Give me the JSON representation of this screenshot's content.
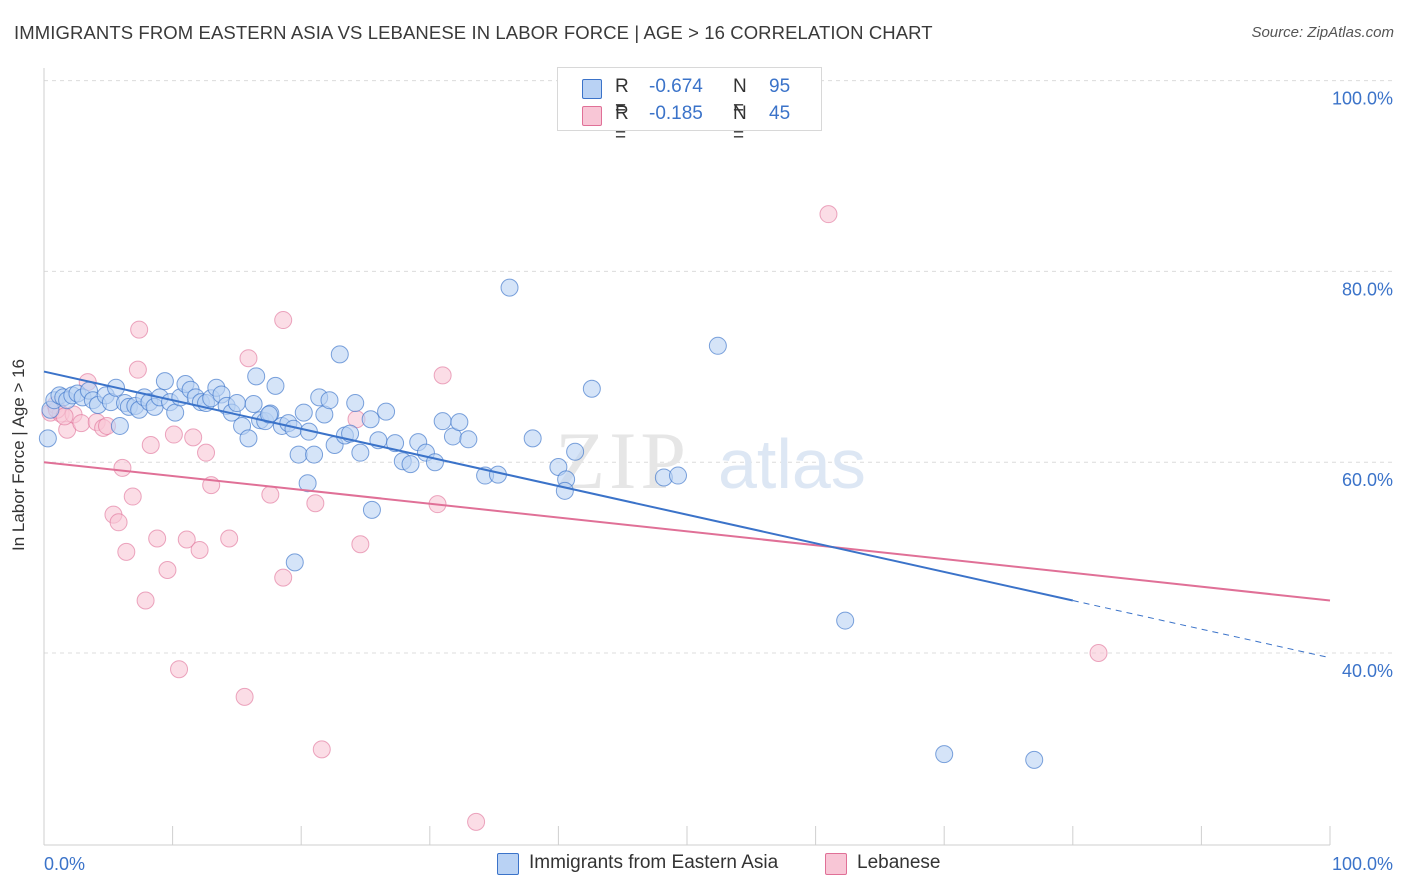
{
  "title": "IMMIGRANTS FROM EASTERN ASIA VS LEBANESE IN LABOR FORCE | AGE > 16 CORRELATION CHART",
  "source": "Source: ZipAtlas.com",
  "watermark": {
    "zip": "ZIP",
    "atlas": "atlas"
  },
  "colors": {
    "blue": "#3b73c9",
    "blue_fill": "#b9d2f4",
    "pink": "#e07097",
    "pink_fill": "#f8c6d6",
    "grid": "#dcdcdc",
    "axis_text": "#3b73c9"
  },
  "legend": {
    "rows": [
      {
        "r_label": "R =",
        "r_value": "-0.674",
        "n_label": "N =",
        "n_value": "95"
      },
      {
        "r_label": "R =",
        "r_value": "-0.185",
        "n_label": "N =",
        "n_value": "45"
      }
    ]
  },
  "bottom_legend": {
    "series1": "Immigrants from Eastern Asia",
    "series2": "Lebanese"
  },
  "chart_data": {
    "type": "scatter",
    "title": "IMMIGRANTS FROM EASTERN ASIA VS LEBANESE IN LABOR FORCE | AGE > 16 CORRELATION CHART",
    "xlabel": "",
    "ylabel": "In Labor Force | Age > 16",
    "xlim": [
      0,
      100
    ],
    "ylim": [
      20,
      102
    ],
    "x_tick_labels": [
      "0.0%",
      "100.0%"
    ],
    "y_ticks": [
      40,
      60,
      80,
      100
    ],
    "y_tick_labels": [
      "40.0%",
      "60.0%",
      "80.0%",
      "100.0%"
    ],
    "grid": true,
    "series": [
      {
        "name": "Immigrants from Eastern Asia",
        "color": "#3b73c9",
        "r": -0.674,
        "n": 95,
        "trend": {
          "x0": 0,
          "y0": 69.5,
          "x1": 80,
          "y1": 45.5,
          "dashed_to_x": 100,
          "dashed_to_y": 39.5
        },
        "points": [
          [
            0.3,
            62.5
          ],
          [
            0.5,
            65.5
          ],
          [
            0.8,
            66.5
          ],
          [
            1.2,
            67
          ],
          [
            1.5,
            66.8
          ],
          [
            1.8,
            66.5
          ],
          [
            2.2,
            67
          ],
          [
            2.6,
            67.2
          ],
          [
            3.0,
            66.8
          ],
          [
            3.5,
            67.5
          ],
          [
            3.8,
            66.5
          ],
          [
            4.2,
            66
          ],
          [
            4.8,
            67
          ],
          [
            5.2,
            66.3
          ],
          [
            5.6,
            67.8
          ],
          [
            5.9,
            63.8
          ],
          [
            6.3,
            66.2
          ],
          [
            6.6,
            65.8
          ],
          [
            7.1,
            65.9
          ],
          [
            7.4,
            65.5
          ],
          [
            7.8,
            66.8
          ],
          [
            8.2,
            66.3
          ],
          [
            8.6,
            65.8
          ],
          [
            9.0,
            66.8
          ],
          [
            9.4,
            68.5
          ],
          [
            9.8,
            66.3
          ],
          [
            10.2,
            65.2
          ],
          [
            10.6,
            66.8
          ],
          [
            11.0,
            68.2
          ],
          [
            11.4,
            67.6
          ],
          [
            11.8,
            66.8
          ],
          [
            12.2,
            66.3
          ],
          [
            12.6,
            66.2
          ],
          [
            13.0,
            66.7
          ],
          [
            13.4,
            67.8
          ],
          [
            13.8,
            67.1
          ],
          [
            14.2,
            65.9
          ],
          [
            14.6,
            65.2
          ],
          [
            15.0,
            66.2
          ],
          [
            15.4,
            63.8
          ],
          [
            15.9,
            62.5
          ],
          [
            16.3,
            66.1
          ],
          [
            16.8,
            64.4
          ],
          [
            17.2,
            64.3
          ],
          [
            17.6,
            65.1
          ],
          [
            18.0,
            68.0
          ],
          [
            18.5,
            63.8
          ],
          [
            19.0,
            64.1
          ],
          [
            19.4,
            63.5
          ],
          [
            19.8,
            60.8
          ],
          [
            20.2,
            65.2
          ],
          [
            20.6,
            63.2
          ],
          [
            21.0,
            60.8
          ],
          [
            21.4,
            66.8
          ],
          [
            21.8,
            65.0
          ],
          [
            22.2,
            66.5
          ],
          [
            22.6,
            61.8
          ],
          [
            23.0,
            71.3
          ],
          [
            23.4,
            62.8
          ],
          [
            23.8,
            63.0
          ],
          [
            24.2,
            66.2
          ],
          [
            24.6,
            61.0
          ],
          [
            25.4,
            64.5
          ],
          [
            26.0,
            62.3
          ],
          [
            26.6,
            65.3
          ],
          [
            27.3,
            62.0
          ],
          [
            27.9,
            60.1
          ],
          [
            28.5,
            59.8
          ],
          [
            29.1,
            62.1
          ],
          [
            29.7,
            61.0
          ],
          [
            30.4,
            60.0
          ],
          [
            31.0,
            64.3
          ],
          [
            31.8,
            62.7
          ],
          [
            32.3,
            64.2
          ],
          [
            33.0,
            62.4
          ],
          [
            34.3,
            58.6
          ],
          [
            35.3,
            58.7
          ],
          [
            36.2,
            78.3
          ],
          [
            38.0,
            62.5
          ],
          [
            40.0,
            59.5
          ],
          [
            40.6,
            58.2
          ],
          [
            41.3,
            61.1
          ],
          [
            42.6,
            67.7
          ],
          [
            48.2,
            58.4
          ],
          [
            49.3,
            58.6
          ],
          [
            52.4,
            72.2
          ],
          [
            62.3,
            43.4
          ],
          [
            70.0,
            29.4
          ],
          [
            77.0,
            28.8
          ],
          [
            19.5,
            49.5
          ],
          [
            16.5,
            69.0
          ],
          [
            20.5,
            57.8
          ],
          [
            25.5,
            55.0
          ],
          [
            40.5,
            57.0
          ],
          [
            17.5,
            65.0
          ]
        ]
      },
      {
        "name": "Lebanese",
        "color": "#e07097",
        "r": -0.185,
        "n": 45,
        "trend": {
          "x0": 0,
          "y0": 60.0,
          "x1": 100,
          "y1": 45.5
        },
        "points": [
          [
            0.5,
            65.2
          ],
          [
            0.9,
            66
          ],
          [
            1.3,
            65.1
          ],
          [
            1.8,
            63.4
          ],
          [
            2.3,
            65
          ],
          [
            2.9,
            64.1
          ],
          [
            3.4,
            68.4
          ],
          [
            4.1,
            64.2
          ],
          [
            4.6,
            63.6
          ],
          [
            6.1,
            59.4
          ],
          [
            5.4,
            54.5
          ],
          [
            5.8,
            53.7
          ],
          [
            6.4,
            50.6
          ],
          [
            6.9,
            56.4
          ],
          [
            7.4,
            73.9
          ],
          [
            7.3,
            69.7
          ],
          [
            7.9,
            45.5
          ],
          [
            8.3,
            61.8
          ],
          [
            8.8,
            52.0
          ],
          [
            9.6,
            48.7
          ],
          [
            10.1,
            62.9
          ],
          [
            10.5,
            38.3
          ],
          [
            11.1,
            51.9
          ],
          [
            11.6,
            62.6
          ],
          [
            12.1,
            50.8
          ],
          [
            12.6,
            61.0
          ],
          [
            13.0,
            57.6
          ],
          [
            14.4,
            52.0
          ],
          [
            15.6,
            35.4
          ],
          [
            15.9,
            70.9
          ],
          [
            17.6,
            56.6
          ],
          [
            18.6,
            74.9
          ],
          [
            18.6,
            47.9
          ],
          [
            21.1,
            55.7
          ],
          [
            21.6,
            29.9
          ],
          [
            24.3,
            64.5
          ],
          [
            24.6,
            51.4
          ],
          [
            30.6,
            55.6
          ],
          [
            31.0,
            69.1
          ],
          [
            33.6,
            22.3
          ],
          [
            61.0,
            86.0
          ],
          [
            82.0,
            40.0
          ],
          [
            1.0,
            65.5
          ],
          [
            1.6,
            64.8
          ],
          [
            4.9,
            63.8
          ]
        ]
      }
    ]
  }
}
